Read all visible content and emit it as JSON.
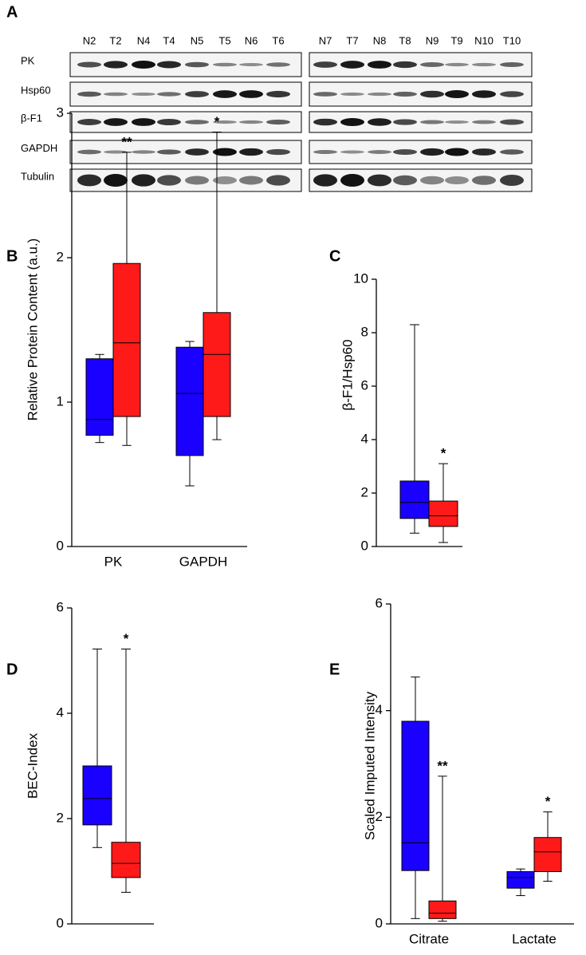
{
  "blot": {
    "panel": "A",
    "lanes": [
      [
        "N2",
        "T2",
        "N4",
        "T4",
        "N5",
        "T5",
        "N6",
        "T6"
      ],
      [
        "N7",
        "T7",
        "N8",
        "T8",
        "N9",
        "T9",
        "N10",
        "T10"
      ]
    ],
    "rows": [
      "PK",
      "Hsp60",
      "β-F1",
      "GAPDH",
      "Tubulin"
    ]
  },
  "chart_data": [
    {
      "type": "box",
      "panel": "B",
      "ylabel": "Relative Protein Content (a.u.)",
      "categories": [
        "PK",
        "GAPDH"
      ],
      "ylim": [
        0,
        3
      ],
      "yticks": [
        0,
        1,
        2,
        3
      ],
      "series": [
        {
          "color": "#1a00ff",
          "boxes": [
            {
              "min": 0.72,
              "q1": 0.77,
              "median": 0.88,
              "q3": 1.3,
              "max": 1.33
            },
            {
              "min": 0.42,
              "q1": 0.63,
              "median": 1.06,
              "q3": 1.38,
              "max": 1.42
            }
          ]
        },
        {
          "color": "#ff1a1a",
          "boxes": [
            {
              "min": 0.7,
              "q1": 0.9,
              "median": 1.41,
              "q3": 1.96,
              "max": 2.73
            },
            {
              "min": 0.74,
              "q1": 0.9,
              "median": 1.33,
              "q3": 1.62,
              "max": 2.87
            }
          ],
          "significance": [
            "**",
            "*"
          ]
        }
      ]
    },
    {
      "type": "box",
      "panel": "C",
      "ylabel": "β-F1/Hsp60",
      "categories": [
        null
      ],
      "ylim": [
        0,
        10
      ],
      "yticks": [
        0,
        2,
        4,
        6,
        8,
        10
      ],
      "series": [
        {
          "color": "#1a00ff",
          "boxes": [
            {
              "min": 0.5,
              "q1": 1.05,
              "median": 1.65,
              "q3": 2.45,
              "max": 8.3
            }
          ]
        },
        {
          "color": "#ff1a1a",
          "boxes": [
            {
              "min": 0.15,
              "q1": 0.75,
              "median": 1.15,
              "q3": 1.7,
              "max": 3.1
            }
          ],
          "significance": [
            "*"
          ]
        }
      ]
    },
    {
      "type": "box",
      "panel": "D",
      "ylabel": "BEC-Index",
      "categories": [
        null
      ],
      "ylim": [
        0,
        6
      ],
      "yticks": [
        0,
        2,
        4,
        6
      ],
      "series": [
        {
          "color": "#1a00ff",
          "boxes": [
            {
              "min": 1.45,
              "q1": 1.88,
              "median": 2.38,
              "q3": 3.0,
              "max": 5.22
            }
          ]
        },
        {
          "color": "#ff1a1a",
          "boxes": [
            {
              "min": 0.6,
              "q1": 0.88,
              "median": 1.15,
              "q3": 1.55,
              "max": 5.22
            }
          ],
          "significance": [
            "*"
          ]
        }
      ]
    },
    {
      "type": "box",
      "panel": "E",
      "ylabel": "Scaled Imputed Intensity",
      "categories": [
        "Citrate",
        "Lactate"
      ],
      "ylim": [
        0,
        6
      ],
      "yticks": [
        0,
        2,
        4,
        6
      ],
      "series": [
        {
          "color": "#1a00ff",
          "boxes": [
            {
              "min": 0.1,
              "q1": 1.0,
              "median": 1.52,
              "q3": 3.8,
              "max": 4.63
            },
            {
              "min": 0.53,
              "q1": 0.67,
              "median": 0.87,
              "q3": 0.98,
              "max": 1.03
            }
          ]
        },
        {
          "color": "#ff1a1a",
          "boxes": [
            {
              "min": 0.05,
              "q1": 0.1,
              "median": 0.2,
              "q3": 0.43,
              "max": 2.77
            },
            {
              "min": 0.8,
              "q1": 0.98,
              "median": 1.35,
              "q3": 1.62,
              "max": 2.1
            }
          ],
          "significance": [
            "**",
            "*"
          ]
        }
      ]
    }
  ]
}
